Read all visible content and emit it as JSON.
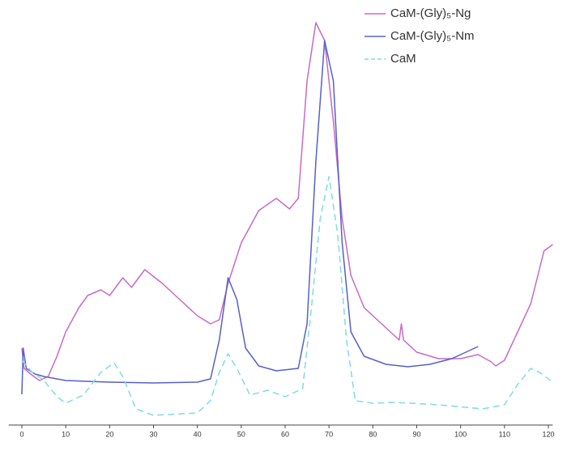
{
  "chart_data": {
    "type": "line",
    "xlim": [
      -3,
      121
    ],
    "xticks": [
      0,
      10,
      20,
      30,
      40,
      50,
      60,
      70,
      80,
      90,
      100,
      110,
      120
    ],
    "ylim": [
      0,
      100
    ],
    "legend": "upper-right",
    "series": [
      {
        "name": "CaM-(Gly)₅-Ng",
        "color": "#c86ac4",
        "style": "solid",
        "x": [
          0,
          0.5,
          2,
          4,
          6,
          8,
          10,
          13,
          15,
          18,
          20,
          23,
          25,
          28,
          32,
          36,
          40,
          43,
          45,
          47,
          50,
          54,
          58,
          61,
          63,
          65,
          67,
          69,
          71,
          73,
          75,
          78,
          82,
          86,
          86.5,
          87,
          90,
          95,
          100,
          104,
          107,
          108,
          110,
          113,
          116,
          119,
          121
        ],
        "values": [
          19,
          14,
          12.6,
          11,
          12,
          17,
          23,
          29,
          32,
          33.4,
          32,
          36.4,
          34,
          38.4,
          35,
          31,
          27,
          25,
          26,
          35,
          45,
          53,
          56,
          53.4,
          56,
          85,
          99.4,
          95,
          75,
          51,
          37,
          29,
          25,
          21,
          25,
          21,
          18,
          16.4,
          16.4,
          17.4,
          15.6,
          14.6,
          16,
          23,
          30,
          43,
          44.6
        ]
      },
      {
        "name": "CaM-(Gly)₅-Nm",
        "color": "#5560c8",
        "style": "solid",
        "x": [
          0,
          0.3,
          1,
          3,
          5,
          10,
          20,
          30,
          40,
          43,
          45,
          47,
          49,
          51,
          54,
          58,
          63,
          65,
          67,
          69,
          71,
          73,
          75,
          78,
          83,
          88,
          93,
          98,
          104
        ],
        "values": [
          7.6,
          19,
          14,
          12.6,
          12,
          11,
          10.6,
          10.4,
          10.6,
          11.4,
          21,
          36.4,
          31,
          19,
          14.6,
          13.4,
          14,
          25,
          65,
          95,
          85,
          45,
          23,
          17,
          15,
          14.4,
          15,
          16.4,
          19.4
        ]
      },
      {
        "name": "CaM",
        "color": "#7fdbe6",
        "style": "dashed",
        "x": [
          0,
          2,
          5,
          8,
          10,
          14,
          18,
          21,
          23,
          26,
          30,
          40,
          43,
          45,
          47,
          49,
          52,
          56,
          60,
          64,
          66,
          68,
          70,
          72,
          74,
          76,
          80,
          85,
          95,
          105,
          110,
          113,
          116,
          118,
          121
        ],
        "values": [
          16,
          13.4,
          11,
          7,
          5.4,
          7.4,
          13,
          15.4,
          12,
          4,
          2.4,
          3,
          6,
          13,
          17.6,
          14,
          7.4,
          8.6,
          7,
          9,
          29,
          51,
          61.4,
          47,
          21,
          6,
          5.4,
          5.6,
          5,
          4,
          5,
          10,
          14,
          13,
          10.6
        ]
      }
    ]
  }
}
